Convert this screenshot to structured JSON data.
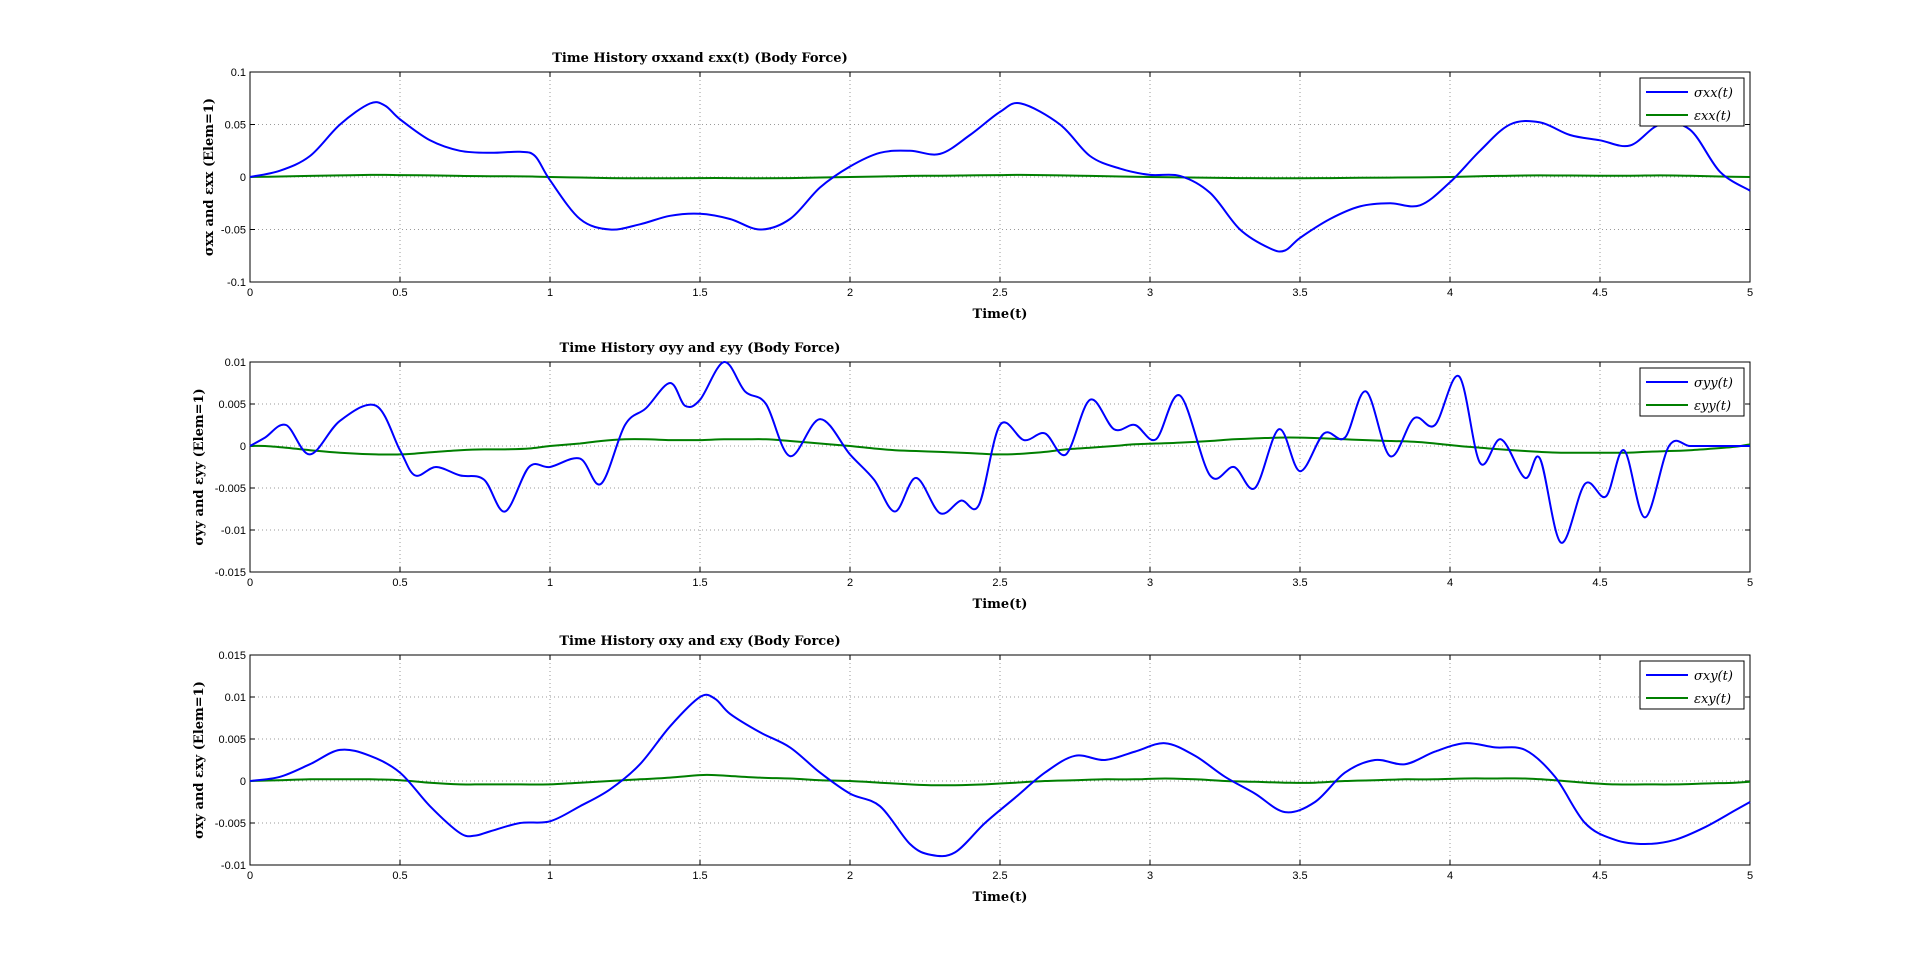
{
  "colors": {
    "stress": "#0000ff",
    "strain": "#007f00"
  },
  "chart_data": [
    {
      "type": "line",
      "title": "Time History σxxand εxx(t) (Body Force)",
      "xlabel": "Time(t)",
      "ylabel": "σxx and εxx (Elem=1)",
      "xlim": [
        0,
        5
      ],
      "ylim": [
        -0.1,
        0.1
      ],
      "xticks": [
        "0",
        "0.5",
        "1",
        "1.5",
        "2",
        "2.5",
        "3",
        "3.5",
        "4",
        "4.5",
        "5"
      ],
      "yticks": [
        "0.1",
        "0.05",
        "0",
        "-0.05",
        "-0.1"
      ],
      "grid": true,
      "legend_position": "top-right",
      "legend": [
        "σxx(t)",
        "εxx(t)"
      ],
      "x": [
        0,
        0.1,
        0.2,
        0.3,
        0.4,
        0.45,
        0.5,
        0.6,
        0.7,
        0.8,
        0.9,
        0.95,
        1.0,
        1.1,
        1.2,
        1.3,
        1.4,
        1.5,
        1.6,
        1.7,
        1.8,
        1.9,
        2.0,
        2.1,
        2.2,
        2.3,
        2.4,
        2.5,
        2.57,
        2.7,
        2.8,
        2.9,
        3.0,
        3.1,
        3.2,
        3.3,
        3.4,
        3.45,
        3.5,
        3.6,
        3.7,
        3.8,
        3.9,
        4.0,
        4.1,
        4.2,
        4.3,
        4.4,
        4.5,
        4.6,
        4.7,
        4.8,
        4.9,
        5.0
      ],
      "series": [
        {
          "name": "σxx(t)",
          "values": [
            0,
            0.006,
            0.02,
            0.05,
            0.07,
            0.068,
            0.055,
            0.035,
            0.025,
            0.023,
            0.024,
            0.02,
            -0.003,
            -0.04,
            -0.05,
            -0.045,
            -0.037,
            -0.035,
            -0.04,
            -0.05,
            -0.04,
            -0.01,
            0.01,
            0.023,
            0.025,
            0.022,
            0.04,
            0.062,
            0.07,
            0.05,
            0.02,
            0.008,
            0.002,
            0.001,
            -0.015,
            -0.05,
            -0.068,
            -0.07,
            -0.058,
            -0.04,
            -0.028,
            -0.025,
            -0.027,
            -0.005,
            0.025,
            0.05,
            0.052,
            0.04,
            0.035,
            0.03,
            0.05,
            0.045,
            0.005,
            -0.013
          ]
        },
        {
          "name": "εxx(t)",
          "values": [
            0,
            0.0005,
            0.001,
            0.0015,
            0.002,
            0.002,
            0.0018,
            0.0015,
            0.001,
            0.0008,
            0.0006,
            0.0004,
            0,
            -0.0005,
            -0.001,
            -0.0012,
            -0.0012,
            -0.001,
            -0.001,
            -0.0012,
            -0.001,
            -0.0005,
            0,
            0.0005,
            0.001,
            0.0012,
            0.0015,
            0.0018,
            0.002,
            0.0015,
            0.001,
            0.0005,
            0,
            -0.0004,
            -0.0008,
            -0.001,
            -0.0012,
            -0.0012,
            -0.0011,
            -0.001,
            -0.0008,
            -0.0006,
            -0.0004,
            0,
            0.0008,
            0.0012,
            0.0015,
            0.0014,
            0.0012,
            0.0012,
            0.0015,
            0.0012,
            0.0005,
            0
          ]
        }
      ]
    },
    {
      "type": "line",
      "title": "Time History σyy and εyy (Body Force)",
      "xlabel": "Time(t)",
      "ylabel": "σyy and εyy (Elem=1)",
      "xlim": [
        0,
        5
      ],
      "ylim": [
        -0.015,
        0.01
      ],
      "xticks": [
        "0",
        "0.5",
        "1",
        "1.5",
        "2",
        "2.5",
        "3",
        "3.5",
        "4",
        "4.5",
        "5"
      ],
      "yticks": [
        "0.01",
        "0.005",
        "0",
        "-0.005",
        "-0.01",
        "-0.015"
      ],
      "grid": true,
      "legend_position": "top-right",
      "legend": [
        "σyy(t)",
        "εyy(t)"
      ],
      "x": [
        0,
        0.05,
        0.12,
        0.2,
        0.3,
        0.42,
        0.5,
        0.55,
        0.62,
        0.7,
        0.78,
        0.85,
        0.93,
        1.0,
        1.1,
        1.17,
        1.25,
        1.32,
        1.4,
        1.45,
        1.5,
        1.58,
        1.65,
        1.72,
        1.8,
        1.9,
        2.0,
        2.08,
        2.15,
        2.22,
        2.3,
        2.37,
        2.43,
        2.5,
        2.58,
        2.65,
        2.72,
        2.8,
        2.88,
        2.95,
        3.02,
        3.1,
        3.2,
        3.28,
        3.35,
        3.43,
        3.5,
        3.58,
        3.65,
        3.72,
        3.8,
        3.88,
        3.95,
        4.03,
        4.1,
        4.17,
        4.25,
        4.3,
        4.37,
        4.45,
        4.52,
        4.58,
        4.65,
        4.73,
        4.8,
        4.88,
        4.95,
        5.0
      ],
      "series": [
        {
          "name": "σyy(t)",
          "values": [
            0,
            0.001,
            0.0025,
            -0.001,
            0.003,
            0.0048,
            -0.0005,
            -0.0035,
            -0.0025,
            -0.0035,
            -0.004,
            -0.0078,
            -0.0025,
            -0.0025,
            -0.0015,
            -0.0045,
            0.0025,
            0.0045,
            0.0075,
            0.0048,
            0.0055,
            0.01,
            0.0065,
            0.005,
            -0.0012,
            0.0032,
            -0.001,
            -0.004,
            -0.0078,
            -0.0038,
            -0.008,
            -0.0065,
            -0.007,
            0.0025,
            0.0007,
            0.0015,
            -0.001,
            0.0055,
            0.002,
            0.0025,
            0.0008,
            0.006,
            -0.0035,
            -0.0025,
            -0.005,
            0.002,
            -0.003,
            0.0015,
            0.001,
            0.0065,
            -0.0012,
            0.0033,
            0.0025,
            0.0083,
            -0.002,
            0.0008,
            -0.0038,
            -0.0015,
            -0.0115,
            -0.0045,
            -0.006,
            -0.0005,
            -0.0085,
            0,
            0,
            0,
            0,
            0
          ]
        },
        {
          "name": "εyy(t)",
          "values": [
            0,
            0,
            -0.0002,
            -0.0005,
            -0.0008,
            -0.001,
            -0.001,
            -0.0009,
            -0.0007,
            -0.0005,
            -0.0004,
            -0.0004,
            -0.0003,
            0,
            0.0003,
            0.0006,
            0.0008,
            0.0008,
            0.0007,
            0.0007,
            0.0007,
            0.0008,
            0.0008,
            0.0008,
            0.0006,
            0.0003,
            0,
            -0.0003,
            -0.0005,
            -0.0006,
            -0.0007,
            -0.0008,
            -0.0009,
            -0.001,
            -0.0009,
            -0.0007,
            -0.0004,
            -0.0002,
            0,
            0.0002,
            0.0003,
            0.0004,
            0.0006,
            0.0008,
            0.0009,
            0.001,
            0.001,
            0.0009,
            0.0008,
            0.0007,
            0.0006,
            0.0005,
            0.0003,
            0,
            -0.0002,
            -0.0004,
            -0.0006,
            -0.0007,
            -0.0008,
            -0.0008,
            -0.0008,
            -0.0008,
            -0.0007,
            -0.0006,
            -0.0005,
            -0.0003,
            -0.0001,
            0.0002
          ]
        }
      ]
    },
    {
      "type": "line",
      "title": "Time History σxy and εxy (Body Force)",
      "xlabel": "Time(t)",
      "ylabel": "σxy and εxy (Elem=1)",
      "xlim": [
        0,
        5
      ],
      "ylim": [
        -0.01,
        0.015
      ],
      "xticks": [
        "0",
        "0.5",
        "1",
        "1.5",
        "2",
        "2.5",
        "3",
        "3.5",
        "4",
        "4.5",
        "5"
      ],
      "yticks": [
        "0.015",
        "0.01",
        "0.005",
        "0",
        "-0.005",
        "-0.01"
      ],
      "grid": true,
      "legend_position": "top-right",
      "legend": [
        "σxy(t)",
        "εxy(t)"
      ],
      "x": [
        0,
        0.1,
        0.2,
        0.3,
        0.4,
        0.5,
        0.6,
        0.7,
        0.75,
        0.8,
        0.9,
        1.0,
        1.1,
        1.2,
        1.3,
        1.4,
        1.5,
        1.55,
        1.6,
        1.7,
        1.8,
        1.9,
        2.0,
        2.1,
        2.2,
        2.27,
        2.35,
        2.45,
        2.55,
        2.65,
        2.75,
        2.85,
        2.95,
        3.05,
        3.15,
        3.25,
        3.35,
        3.45,
        3.55,
        3.65,
        3.75,
        3.85,
        3.95,
        4.05,
        4.15,
        4.25,
        4.35,
        4.45,
        4.55,
        4.65,
        4.75,
        4.85,
        4.95,
        5.0
      ],
      "series": [
        {
          "name": "σxy(t)",
          "values": [
            0,
            0.0005,
            0.002,
            0.0037,
            0.003,
            0.001,
            -0.003,
            -0.0062,
            -0.0065,
            -0.006,
            -0.005,
            -0.0048,
            -0.003,
            -0.001,
            0.002,
            0.0065,
            0.01,
            0.0098,
            0.008,
            0.0058,
            0.004,
            0.001,
            -0.0015,
            -0.003,
            -0.0075,
            -0.0088,
            -0.0085,
            -0.005,
            -0.002,
            0.001,
            0.003,
            0.0025,
            0.0035,
            0.0045,
            0.003,
            0.0005,
            -0.0015,
            -0.0037,
            -0.0025,
            0.001,
            0.0025,
            0.002,
            0.0035,
            0.0045,
            0.004,
            0.0037,
            0.0005,
            -0.005,
            -0.007,
            -0.0075,
            -0.007,
            -0.0055,
            -0.0035,
            -0.0025
          ]
        },
        {
          "name": "εxy(t)",
          "values": [
            0,
            0.0001,
            0.0002,
            0.0002,
            0.0002,
            0.0001,
            -0.0002,
            -0.0004,
            -0.0004,
            -0.0004,
            -0.0004,
            -0.0004,
            -0.0002,
            0,
            0.0002,
            0.0004,
            0.0007,
            0.0007,
            0.0006,
            0.0004,
            0.0003,
            0.0001,
            0,
            -0.0002,
            -0.0004,
            -0.0005,
            -0.0005,
            -0.0004,
            -0.0002,
            0,
            0.0001,
            0.0002,
            0.0002,
            0.0003,
            0.0002,
            0,
            -0.0001,
            -0.0002,
            -0.0002,
            0,
            0.0001,
            0.0002,
            0.0002,
            0.0003,
            0.0003,
            0.0003,
            0.0001,
            -0.0002,
            -0.0004,
            -0.0004,
            -0.0004,
            -0.0003,
            -0.0002,
            -0.0001
          ]
        }
      ]
    }
  ]
}
